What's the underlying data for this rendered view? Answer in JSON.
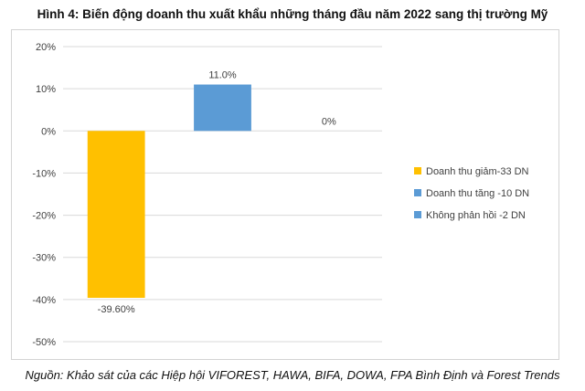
{
  "title": "Hình 4: Biến động doanh thu xuất khẩu những tháng đầu năm 2022 sang thị trường Mỹ",
  "source": "Nguồn: Khảo sát của các Hiệp hội VIFOREST, HAWA, BIFA, DOWA, FPA Bình Định và Forest Trends",
  "chart_data": {
    "type": "bar",
    "title": "Hình 4: Biến động doanh thu xuất khẩu những tháng đầu năm 2022 sang thị trường Mỹ",
    "xlabel": "",
    "ylabel": "",
    "ylim": [
      -50,
      20
    ],
    "yticks": [
      20,
      10,
      0,
      -10,
      -20,
      -30,
      -40,
      -50
    ],
    "ytick_labels": [
      "20%",
      "10%",
      "0%",
      "-10%",
      "-20%",
      "-30%",
      "-40%",
      "-50%"
    ],
    "grid": true,
    "legend_position": "right",
    "series": [
      {
        "name": "Doanh thu giảm-33 DN",
        "value": -39.6,
        "label": "-39.60%",
        "color": "#FFC000"
      },
      {
        "name": "Doanh thu tăng -10 DN",
        "value": 11.0,
        "label": "11.0%",
        "color": "#5B9BD5"
      },
      {
        "name": "Không phản hồi -2 DN",
        "value": 0,
        "label": "0%",
        "color": "#5B9BD5"
      }
    ]
  }
}
